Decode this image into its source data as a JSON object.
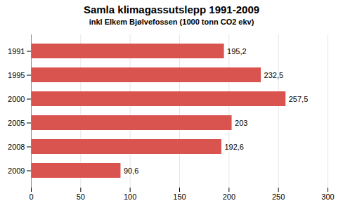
{
  "chart_data": {
    "type": "bar",
    "orientation": "horizontal",
    "title": "Samla klimagassutslepp 1991-2009",
    "subtitle": "inkl Elkem Bjølvefossen (1000 tonn CO2 ekv)",
    "categories": [
      "1991",
      "1995",
      "2000",
      "2005",
      "2008",
      "2009"
    ],
    "values": [
      195.2,
      232.5,
      257.5,
      203.0,
      192.6,
      90.6
    ],
    "value_labels": [
      "195,2",
      "232,5",
      "257,5",
      "203",
      "192,6",
      "90,6"
    ],
    "data_labels": true,
    "color": "#d9534f",
    "xlim": [
      0,
      300
    ],
    "xticks": [
      0,
      50,
      100,
      150,
      200,
      250,
      300
    ],
    "grid": true
  }
}
